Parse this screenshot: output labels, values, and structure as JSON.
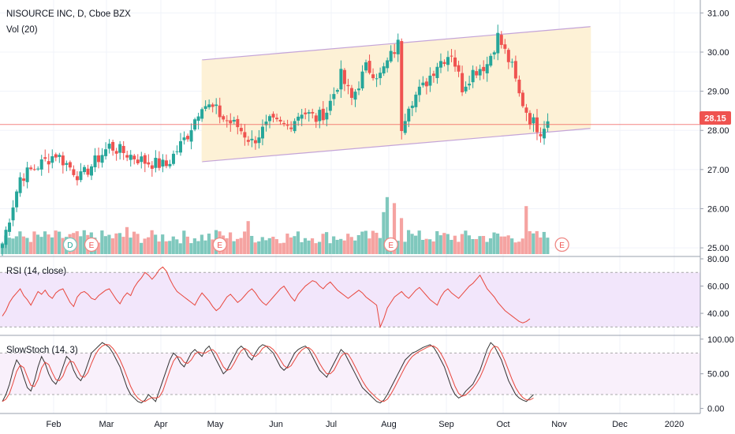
{
  "header": {
    "title": "NISOURCE INC, D, Cboe BZX",
    "volume_label": "Vol (20)"
  },
  "price_tag": "28.15",
  "colors": {
    "up": "#26a69a",
    "down": "#ef5350",
    "up_vol": "#7fc8bd",
    "down_vol": "#f5a3a1",
    "channel_fill": "#fdf1d6",
    "channel_line": "#c4a4d8",
    "rsi_band": "#f2e6fb",
    "rsi_line": "#e8463c",
    "stoch_k": "#333333",
    "stoch_d": "#e8463c",
    "price_line": "#ef5350"
  },
  "chart_data": [
    {
      "type": "candlestick",
      "title": "NISOURCE INC, D, Cboe BZX",
      "ylim": [
        24.8,
        31.25
      ],
      "y_ticks": [
        "31.00",
        "30.00",
        "29.00",
        "28.00",
        "27.00",
        "26.00",
        "25.00"
      ],
      "last_price": 28.15,
      "x_ticks": [
        "Feb",
        "Mar",
        "Apr",
        "May",
        "Jun",
        "Jul",
        "Aug",
        "Sep",
        "Oct",
        "Nov",
        "Dec",
        "2020"
      ],
      "price_path": [
        [
          0,
          25.1
        ],
        [
          5,
          26.8
        ],
        [
          15,
          27.4
        ],
        [
          22,
          26.8
        ],
        [
          30,
          27.6
        ],
        [
          40,
          27.2
        ],
        [
          46,
          27.1
        ],
        [
          52,
          27.9
        ],
        [
          56,
          28.7
        ],
        [
          60,
          28.5
        ],
        [
          62,
          28.3
        ],
        [
          66,
          28.1
        ],
        [
          70,
          27.7
        ],
        [
          75,
          28.2
        ],
        [
          80,
          28.1
        ],
        [
          84,
          28.5
        ],
        [
          88,
          28.3
        ],
        [
          91,
          28.5
        ],
        [
          95,
          29.4
        ],
        [
          98,
          28.8
        ],
        [
          102,
          29.6
        ],
        [
          106,
          29.4
        ],
        [
          109,
          29.9
        ],
        [
          111,
          30.2
        ],
        [
          112,
          28.1
        ],
        [
          114,
          28.7
        ],
        [
          118,
          29.1
        ],
        [
          122,
          29.7
        ],
        [
          126,
          30.0
        ],
        [
          129,
          29.1
        ],
        [
          132,
          29.5
        ],
        [
          136,
          29.7
        ],
        [
          139,
          30.4
        ],
        [
          143,
          29.6
        ],
        [
          145,
          28.9
        ],
        [
          148,
          28.3
        ],
        [
          151,
          28.0
        ],
        [
          153,
          28.3
        ]
      ],
      "volume_spikes": [
        [
          35,
          0.9
        ],
        [
          60,
          0.8
        ],
        [
          69,
          1.1
        ],
        [
          107,
          1.4
        ],
        [
          108,
          1.9
        ],
        [
          110,
          1.7
        ],
        [
          112,
          1.2
        ],
        [
          114,
          0.8
        ],
        [
          147,
          1.6
        ]
      ],
      "events": [
        {
          "label": "D",
          "x": 19
        },
        {
          "label": "E",
          "x": 25
        },
        {
          "label": "E",
          "x": 61
        },
        {
          "label": "E",
          "x": 109
        },
        {
          "label": "E",
          "x": 157
        }
      ],
      "channel": {
        "upper": [
          [
            56,
            29.8
          ],
          [
            165,
            30.65
          ]
        ],
        "lower": [
          [
            56,
            27.2
          ],
          [
            165,
            28.05
          ]
        ]
      }
    },
    {
      "type": "line",
      "title": "RSI (14, close)",
      "ylim": [
        25,
        80
      ],
      "y_ticks": [
        "80.00",
        "60.00",
        "40.00"
      ],
      "band": [
        30,
        70
      ],
      "values": [
        38,
        42,
        48,
        52,
        55,
        58,
        53,
        50,
        46,
        51,
        56,
        54,
        57,
        53,
        51,
        55,
        57,
        58,
        53,
        48,
        45,
        52,
        55,
        56,
        54,
        51,
        50,
        53,
        55,
        57,
        58,
        54,
        50,
        47,
        52,
        55,
        53,
        59,
        63,
        66,
        70,
        68,
        65,
        68,
        72,
        74,
        71,
        65,
        60,
        56,
        54,
        52,
        50,
        48,
        46,
        51,
        55,
        52,
        49,
        45,
        42,
        44,
        48,
        52,
        54,
        51,
        48,
        50,
        53,
        56,
        58,
        55,
        51,
        48,
        46,
        49,
        52,
        55,
        58,
        60,
        56,
        52,
        49,
        54,
        57,
        60,
        62,
        64,
        63,
        60,
        58,
        61,
        63,
        60,
        57,
        55,
        53,
        51,
        53,
        55,
        57,
        55,
        52,
        50,
        48,
        46,
        30,
        36,
        44,
        48,
        52,
        54,
        56,
        53,
        51,
        54,
        57,
        59,
        56,
        53,
        50,
        48,
        46,
        52,
        56,
        58,
        55,
        53,
        51,
        54,
        57,
        60,
        62,
        65,
        68,
        63,
        58,
        55,
        52,
        48,
        45,
        42,
        40,
        38,
        36,
        34,
        33,
        34,
        36
      ]
    },
    {
      "type": "line",
      "title": "SlowStoch (14, 3)",
      "ylim": [
        -5,
        102
      ],
      "y_ticks": [
        "100.00",
        "50.00",
        "0.00"
      ],
      "levels": [
        20,
        80
      ],
      "k_values": [
        10,
        20,
        35,
        55,
        70,
        62,
        45,
        30,
        25,
        40,
        60,
        75,
        65,
        50,
        40,
        35,
        45,
        60,
        75,
        70,
        55,
        45,
        40,
        50,
        65,
        80,
        85,
        90,
        95,
        92,
        88,
        80,
        70,
        60,
        45,
        30,
        20,
        15,
        10,
        8,
        12,
        20,
        15,
        10,
        25,
        40,
        55,
        70,
        80,
        75,
        65,
        60,
        70,
        80,
        85,
        80,
        75,
        85,
        90,
        80,
        70,
        60,
        50,
        55,
        65,
        75,
        85,
        90,
        85,
        75,
        70,
        80,
        88,
        92,
        90,
        85,
        80,
        70,
        60,
        55,
        60,
        70,
        80,
        85,
        88,
        90,
        85,
        75,
        65,
        55,
        50,
        45,
        55,
        65,
        75,
        85,
        80,
        70,
        60,
        50,
        40,
        30,
        25,
        20,
        15,
        10,
        8,
        12,
        20,
        30,
        40,
        50,
        60,
        70,
        75,
        80,
        82,
        85,
        88,
        90,
        92,
        88,
        80,
        70,
        60,
        45,
        30,
        20,
        15,
        18,
        25,
        30,
        35,
        45,
        55,
        70,
        85,
        95,
        90,
        80,
        70,
        55,
        40,
        30,
        20,
        15,
        12,
        10,
        15,
        20
      ]
    }
  ]
}
